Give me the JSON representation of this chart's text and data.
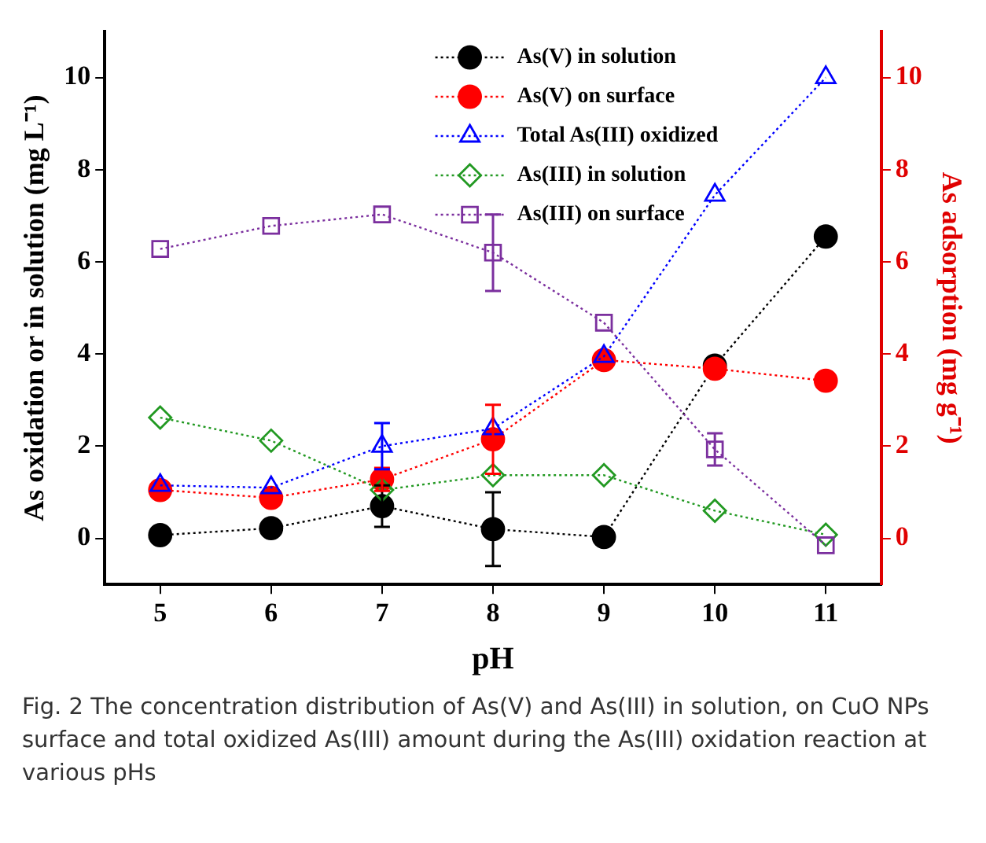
{
  "chart_data": {
    "type": "line",
    "xlabel": "pH",
    "ylabel": "As oxidation or in solution (mg L⁻¹)",
    "y2label": "As adsorption (mg g⁻¹)",
    "x": [
      5,
      6,
      7,
      8,
      9,
      10,
      11
    ],
    "xlim": [
      4.5,
      11.5
    ],
    "xticks": [
      5,
      6,
      7,
      8,
      9,
      10,
      11
    ],
    "ylim": [
      -1,
      11
    ],
    "yticks": [
      0,
      2,
      4,
      6,
      8,
      10
    ],
    "y2lim": [
      -1,
      11
    ],
    "y2ticks": [
      0,
      2,
      4,
      6,
      8,
      10
    ],
    "grid": false,
    "legend": "top right",
    "line_style": "dotted",
    "series": [
      {
        "name": "As(V) in solution",
        "color": "#000000",
        "marker": "circle",
        "values": [
          0.07,
          0.22,
          0.7,
          0.2,
          0.03,
          3.75,
          6.55
        ],
        "errors": [
          null,
          null,
          0.45,
          0.8,
          null,
          null,
          null
        ]
      },
      {
        "name": "As(V) on surface",
        "color": "#ff0000",
        "marker": "circle",
        "values": [
          1.05,
          0.88,
          1.28,
          2.15,
          3.87,
          3.68,
          3.42
        ],
        "errors": [
          null,
          null,
          0.25,
          0.75,
          null,
          null,
          null
        ]
      },
      {
        "name": "Total As(III) oxidized",
        "color": "#0000ff",
        "marker": "triangle",
        "values": [
          1.15,
          1.1,
          2.0,
          2.38,
          3.95,
          7.45,
          10.0
        ],
        "errors": [
          null,
          null,
          0.5,
          null,
          null,
          null,
          null
        ]
      },
      {
        "name": "As(III) in solution",
        "color": "#229922",
        "marker": "diamond",
        "values": [
          2.62,
          2.12,
          1.05,
          1.37,
          1.37,
          0.6,
          0.08
        ]
      },
      {
        "name": "As(III) on surface",
        "color": "#7b2f9e",
        "marker": "square",
        "values": [
          6.28,
          6.78,
          7.03,
          6.2,
          4.68,
          1.93,
          -0.15
        ],
        "errors": [
          null,
          null,
          null,
          0.83,
          null,
          0.35,
          null
        ]
      }
    ],
    "annotations": [
      "Fig. 2  The concentration distribution of As(V) and As(III) in solution, on CuO NPs surface and total oxidized As(III) amount during the As(III) oxidation reaction at various pHs"
    ]
  }
}
